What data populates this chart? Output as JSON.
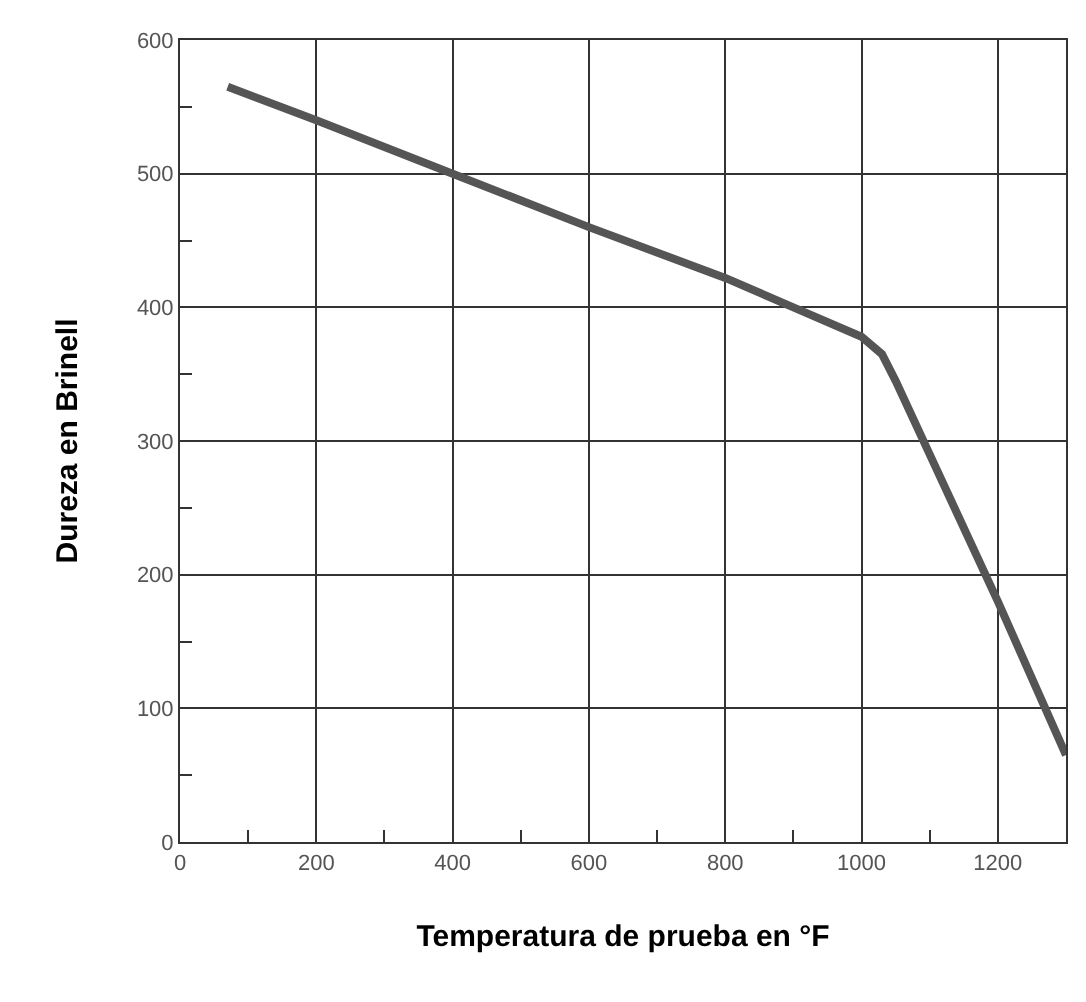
{
  "chart_data": {
    "type": "line",
    "xlabel": "Temperatura de prueba en °F",
    "ylabel": "Dureza en Brinell",
    "x": [
      70,
      200,
      400,
      600,
      800,
      900,
      1000,
      1030,
      1050,
      1100,
      1200,
      1300
    ],
    "series": [
      {
        "color": "#555555",
        "values": [
          565,
          540,
          500,
          460,
          422,
          400,
          378,
          365,
          345,
          290,
          180,
          65
        ]
      }
    ],
    "xlim": [
      0,
      1300
    ],
    "xticks": [
      0,
      200,
      400,
      600,
      800,
      1000,
      1200
    ],
    "ylim": [
      0,
      600
    ],
    "yticks": [
      0,
      100,
      200,
      300,
      400,
      500,
      600
    ],
    "grid": true,
    "marker": "none",
    "line_style": "solid"
  }
}
